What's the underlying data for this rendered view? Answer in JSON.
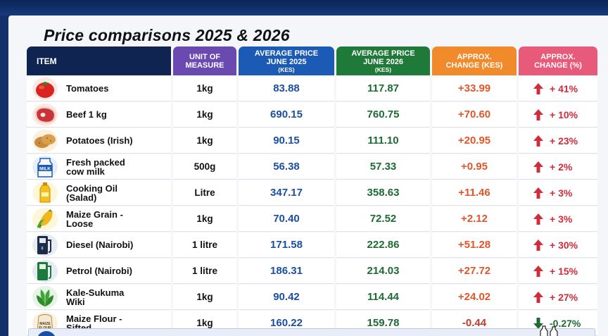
{
  "title": "Price comparisons 2025 & 2026",
  "headers": {
    "item": "ITEM",
    "unit": "UNIT OF MEASURE",
    "price_2025": "AVERAGE PRICE JUNE 2025",
    "price_2025_sub": "(KES)",
    "price_2026": "AVERAGE PRICE JUNE 2026",
    "price_2026_sub": "(KES)",
    "change": "APPROX. CHANGE (KES)",
    "change_pct": "APPROX. CHANGE (%)"
  },
  "rows": [
    {
      "item": "Tomatoes",
      "icon": "tomato-icon",
      "unit": "1kg",
      "p25": "83.88",
      "p26": "117.87",
      "chg": "+33.99",
      "pct": "+ 41%",
      "dir": "up"
    },
    {
      "item": "Beef 1 kg",
      "icon": "beef-icon",
      "unit": "1kg",
      "p25": "690.15",
      "p26": "760.75",
      "chg": "+70.60",
      "pct": "+ 10%",
      "dir": "up"
    },
    {
      "item": "Potatoes (Irish)",
      "icon": "potato-icon",
      "unit": "1kg",
      "p25": "90.15",
      "p26": "111.10",
      "chg": "+20.95",
      "pct": "+ 23%",
      "dir": "up"
    },
    {
      "item": "Fresh packed cow milk",
      "icon": "milk-icon",
      "unit": "500g",
      "p25": "56.38",
      "p26": "57.33",
      "chg": "+0.95",
      "pct": "+ 2%",
      "dir": "up"
    },
    {
      "item": "Cooking Oil (Salad)",
      "icon": "oil-bottle-icon",
      "unit": "Litre",
      "p25": "347.17",
      "p26": "358.63",
      "chg": "+11.46",
      "pct": "+ 3%",
      "dir": "up"
    },
    {
      "item": "Maize Grain - Loose",
      "icon": "maize-icon",
      "unit": "1kg",
      "p25": "70.40",
      "p26": "72.52",
      "chg": "+2.12",
      "pct": "+ 3%",
      "dir": "up"
    },
    {
      "item": "Diesel (Nairobi)",
      "icon": "fuel-pump-icon",
      "unit": "1 litre",
      "p25": "171.58",
      "p26": "222.86",
      "chg": "+51.28",
      "pct": "+ 30%",
      "dir": "up"
    },
    {
      "item": "Petrol (Nairobi)",
      "icon": "fuel-pump-icon",
      "unit": "1 litre",
      "p25": "186.31",
      "p26": "214.03",
      "chg": "+27.72",
      "pct": "+ 15%",
      "dir": "up"
    },
    {
      "item": "Kale-Sukuma Wiki",
      "icon": "kale-icon",
      "unit": "1kg",
      "p25": "90.42",
      "p26": "114.44",
      "chg": "+24.02",
      "pct": "+ 27%",
      "dir": "up"
    },
    {
      "item": "Maize Flour - Sifted",
      "icon": "flour-bag-icon",
      "unit": "1kg",
      "p25": "160.22",
      "p26": "159.78",
      "chg": "-0.44",
      "pct": "-0.27%",
      "dir": "down"
    }
  ],
  "colors": {
    "up": "#d12c3a",
    "down": "#1d6b33"
  },
  "icon_labels": {
    "milk": "MILK",
    "flour": "MAIZE FLOUR"
  }
}
